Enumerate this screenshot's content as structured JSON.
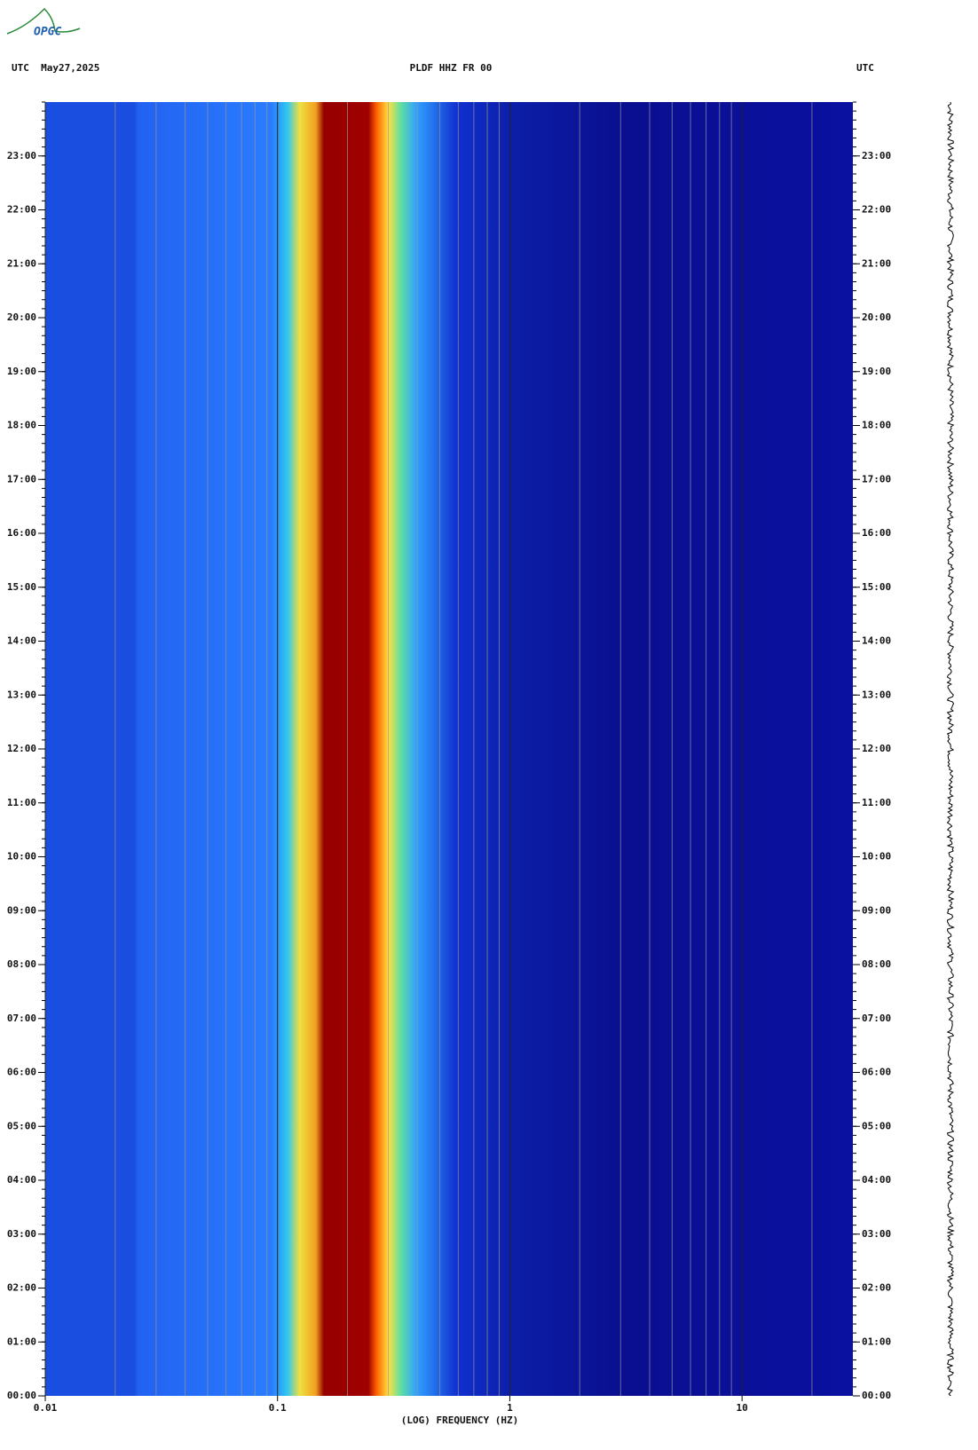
{
  "chart_data": {
    "type": "spectrogram",
    "logo": "OPGC",
    "title_left": "UTC  May27,2025",
    "title": "PLDF HHZ FR 00",
    "title_right": "UTC",
    "xlabel": "(LOG) FREQUENCY (HZ)",
    "xscale": "log",
    "xlim": [
      0.01,
      30
    ],
    "xticks": [
      {
        "value": 0.01,
        "label": "0.01"
      },
      {
        "value": 0.1,
        "label": "0.1"
      },
      1,
      10
    ],
    "ylim": [
      0,
      24
    ],
    "yticks": [
      {
        "value": 0,
        "label": "00:00"
      },
      {
        "value": 1,
        "label": "01:00"
      },
      {
        "value": 2,
        "label": "02:00"
      },
      {
        "value": 3,
        "label": "03:00"
      },
      {
        "value": 4,
        "label": "04:00"
      },
      {
        "value": 5,
        "label": "05:00"
      },
      {
        "value": 6,
        "label": "06:00"
      },
      {
        "value": 7,
        "label": "07:00"
      },
      {
        "value": 8,
        "label": "08:00"
      },
      {
        "value": 9,
        "label": "09:00"
      },
      {
        "value": 10,
        "label": "10:00"
      },
      {
        "value": 11,
        "label": "11:00"
      },
      {
        "value": 12,
        "label": "12:00"
      },
      {
        "value": 13,
        "label": "13:00"
      },
      {
        "value": 14,
        "label": "14:00"
      },
      {
        "value": 15,
        "label": "15:00"
      },
      {
        "value": 16,
        "label": "16:00"
      },
      {
        "value": 17,
        "label": "17:00"
      },
      {
        "value": 18,
        "label": "18:00"
      },
      {
        "value": 19,
        "label": "19:00"
      },
      {
        "value": 20,
        "label": "20:00"
      },
      {
        "value": 21,
        "label": "21:00"
      },
      {
        "value": 22,
        "label": "22:00"
      },
      {
        "value": 23,
        "label": "23:00"
      }
    ]
  }
}
